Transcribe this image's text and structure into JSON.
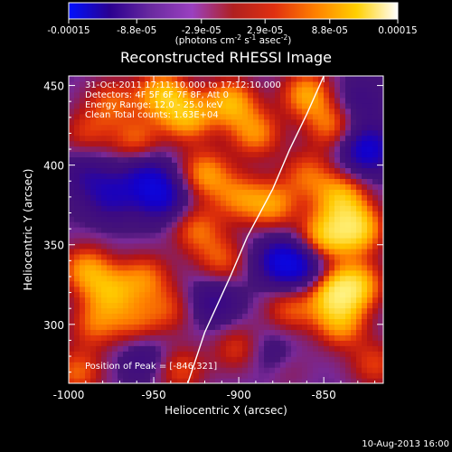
{
  "chart_data": {
    "type": "heatmap",
    "title": "Reconstructed RHESSI Image",
    "xlabel": "Heliocentric X (arcsec)",
    "ylabel": "Heliocentric Y (arcsec)",
    "xlim": [
      -1000,
      -815
    ],
    "ylim": [
      263,
      456
    ],
    "xticks": [
      -1000,
      -950,
      -900,
      -850
    ],
    "xtick_labels": [
      "-1000",
      "-950",
      "-900",
      "-850"
    ],
    "yticks": [
      300,
      350,
      400,
      450
    ],
    "ytick_labels": [
      "300",
      "350",
      "400",
      "450"
    ],
    "colorbar": {
      "ticks": [
        -0.00015,
        -8.8e-05,
        -2.9e-05,
        2.9e-05,
        8.8e-05,
        0.00015
      ],
      "tick_labels": [
        "-0.00015",
        "-8.8e-05",
        "-2.9e-05",
        "2.9e-05",
        "8.8e-05",
        "0.00015"
      ],
      "unit_prefix": "(photons cm",
      "unit_sup1": "-2",
      "unit_mid": " s",
      "unit_sup2": "-1",
      "unit_end": " asec",
      "unit_sup3": "-2",
      "unit_close": ")",
      "colors": [
        "#0010ff",
        "#2a0090",
        "#6a2aa0",
        "#9a40c0",
        "#b02020",
        "#e03010",
        "#ff8000",
        "#ffd000",
        "#ffffff"
      ]
    },
    "annotations": {
      "time": "31-Oct-2011 17:11:10.000 to 17:12:10.000",
      "detectors": "Detectors: 4F 5F 6F 7F 8F, Att 0",
      "energy": "Energy Range: 12.0 - 25.0 keV",
      "clean": "Clean     Total counts: 1.63E+04",
      "peak": "Position of Peak = [-846,321]"
    },
    "limb_curve": [
      [
        -930,
        263
      ],
      [
        -920,
        295
      ],
      [
        -905,
        330
      ],
      [
        -895,
        355
      ],
      [
        -880,
        385
      ],
      [
        -870,
        410
      ],
      [
        -860,
        432
      ],
      [
        -850,
        456
      ]
    ],
    "blobs": [
      {
        "x": -945,
        "y": 445,
        "v": 0.9
      },
      {
        "x": -930,
        "y": 430,
        "v": 0.8
      },
      {
        "x": -905,
        "y": 440,
        "v": 0.85
      },
      {
        "x": -890,
        "y": 420,
        "v": 0.7
      },
      {
        "x": -960,
        "y": 415,
        "v": 0.6
      },
      {
        "x": -975,
        "y": 440,
        "v": 0.55
      },
      {
        "x": -990,
        "y": 420,
        "v": 0.45
      },
      {
        "x": -860,
        "y": 445,
        "v": 0.8
      },
      {
        "x": -845,
        "y": 425,
        "v": 0.65
      },
      {
        "x": -920,
        "y": 395,
        "v": 0.75
      },
      {
        "x": -900,
        "y": 380,
        "v": 0.6
      },
      {
        "x": -880,
        "y": 375,
        "v": 0.7
      },
      {
        "x": -860,
        "y": 395,
        "v": 0.55
      },
      {
        "x": -840,
        "y": 380,
        "v": 0.85
      },
      {
        "x": -830,
        "y": 360,
        "v": 1.0
      },
      {
        "x": -850,
        "y": 355,
        "v": 0.9
      },
      {
        "x": -845,
        "y": 320,
        "v": 0.95
      },
      {
        "x": -830,
        "y": 325,
        "v": 0.85
      },
      {
        "x": -840,
        "y": 300,
        "v": 0.7
      },
      {
        "x": -870,
        "y": 310,
        "v": 0.55
      },
      {
        "x": -925,
        "y": 360,
        "v": 0.6
      },
      {
        "x": -910,
        "y": 340,
        "v": 0.55
      },
      {
        "x": -990,
        "y": 335,
        "v": 0.75
      },
      {
        "x": -975,
        "y": 320,
        "v": 0.7
      },
      {
        "x": -955,
        "y": 330,
        "v": 0.6
      },
      {
        "x": -985,
        "y": 300,
        "v": 0.55
      },
      {
        "x": -960,
        "y": 300,
        "v": 0.5
      },
      {
        "x": -940,
        "y": 310,
        "v": 0.45
      },
      {
        "x": -995,
        "y": 270,
        "v": 0.6
      },
      {
        "x": -935,
        "y": 272,
        "v": 0.55
      },
      {
        "x": -900,
        "y": 285,
        "v": 0.5
      },
      {
        "x": -875,
        "y": 275,
        "v": 0.45
      },
      {
        "x": -820,
        "y": 275,
        "v": 0.5
      },
      {
        "x": -955,
        "y": 395,
        "v": -0.6
      },
      {
        "x": -945,
        "y": 380,
        "v": -0.75
      },
      {
        "x": -975,
        "y": 380,
        "v": -0.55
      },
      {
        "x": -825,
        "y": 410,
        "v": -0.9
      },
      {
        "x": -875,
        "y": 340,
        "v": -0.85
      },
      {
        "x": -860,
        "y": 335,
        "v": -0.6
      },
      {
        "x": -880,
        "y": 280,
        "v": -0.55
      },
      {
        "x": -915,
        "y": 315,
        "v": -0.5
      },
      {
        "x": -955,
        "y": 280,
        "v": -0.4
      },
      {
        "x": -990,
        "y": 395,
        "v": -0.4
      },
      {
        "x": -830,
        "y": 440,
        "v": -0.35
      }
    ]
  },
  "footer": {
    "date": "10-Aug-2013 16:00"
  }
}
